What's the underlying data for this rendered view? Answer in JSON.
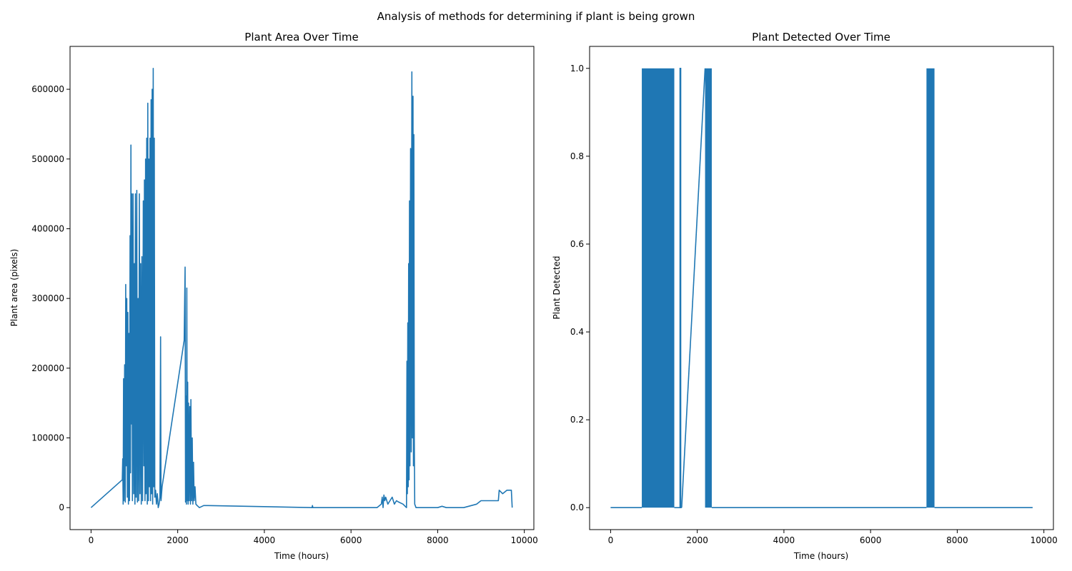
{
  "figure": {
    "suptitle": "Analysis of methods for determining if plant is being grown"
  },
  "colors": {
    "series": "#1f77b4",
    "axes": "#000000",
    "background": "#ffffff"
  },
  "chart_data": [
    {
      "id": "area",
      "type": "line",
      "title": "Plant Area Over Time",
      "xlabel": "Time (hours)",
      "ylabel": "Plant area (pixels)",
      "xlim": [
        -485,
        10220
      ],
      "ylim": [
        -31500,
        661500
      ],
      "xticks": [
        0,
        2000,
        4000,
        6000,
        8000,
        10000
      ],
      "yticks": [
        0,
        100000,
        200000,
        300000,
        400000,
        500000,
        600000
      ],
      "grid": false,
      "series": [
        {
          "points": [
            [
              0,
              0
            ],
            [
              720,
              40000
            ],
            [
              730,
              70000
            ],
            [
              740,
              5000
            ],
            [
              750,
              185000
            ],
            [
              760,
              10000
            ],
            [
              775,
              205000
            ],
            [
              790,
              8000
            ],
            [
              800,
              320000
            ],
            [
              812,
              60000
            ],
            [
              825,
              300000
            ],
            [
              838,
              15000
            ],
            [
              850,
              280000
            ],
            [
              863,
              5000
            ],
            [
              875,
              250000
            ],
            [
              888,
              10000
            ],
            [
              900,
              390000
            ],
            [
              910,
              50000
            ],
            [
              920,
              520000
            ],
            [
              930,
              120000
            ],
            [
              940,
              450000
            ],
            [
              955,
              10000
            ],
            [
              970,
              450000
            ],
            [
              985,
              20000
            ],
            [
              1000,
              350000
            ],
            [
              1012,
              5000
            ],
            [
              1025,
              450000
            ],
            [
              1040,
              15000
            ],
            [
              1055,
              455000
            ],
            [
              1070,
              8000
            ],
            [
              1085,
              300000
            ],
            [
              1100,
              10000
            ],
            [
              1115,
              450000
            ],
            [
              1130,
              20000
            ],
            [
              1145,
              350000
            ],
            [
              1160,
              5000
            ],
            [
              1175,
              360000
            ],
            [
              1190,
              10000
            ],
            [
              1205,
              440000
            ],
            [
              1220,
              60000
            ],
            [
              1232,
              470000
            ],
            [
              1245,
              10000
            ],
            [
              1258,
              500000
            ],
            [
              1270,
              20000
            ],
            [
              1285,
              530000
            ],
            [
              1298,
              5000
            ],
            [
              1310,
              580000
            ],
            [
              1322,
              10000
            ],
            [
              1335,
              500000
            ],
            [
              1348,
              30000
            ],
            [
              1360,
              530000
            ],
            [
              1372,
              10000
            ],
            [
              1385,
              585000
            ],
            [
              1397,
              20000
            ],
            [
              1410,
              600000
            ],
            [
              1422,
              5000
            ],
            [
              1435,
              630000
            ],
            [
              1447,
              30000
            ],
            [
              1460,
              530000
            ],
            [
              1472,
              15000
            ],
            [
              1490,
              25000
            ],
            [
              1510,
              5000
            ],
            [
              1530,
              20000
            ],
            [
              1550,
              0
            ],
            [
              1570,
              5000
            ],
            [
              1590,
              15000
            ],
            [
              1605,
              245000
            ],
            [
              1615,
              10000
            ],
            [
              1640,
              30000
            ],
            [
              2150,
              240000
            ],
            [
              2170,
              345000
            ],
            [
              2180,
              8000
            ],
            [
              2190,
              160000
            ],
            [
              2200,
              5000
            ],
            [
              2210,
              315000
            ],
            [
              2220,
              10000
            ],
            [
              2230,
              180000
            ],
            [
              2240,
              5000
            ],
            [
              2250,
              150000
            ],
            [
              2265,
              10000
            ],
            [
              2280,
              145000
            ],
            [
              2295,
              5000
            ],
            [
              2305,
              155000
            ],
            [
              2320,
              10000
            ],
            [
              2335,
              100000
            ],
            [
              2350,
              5000
            ],
            [
              2365,
              65000
            ],
            [
              2380,
              10000
            ],
            [
              2400,
              30000
            ],
            [
              2420,
              5000
            ],
            [
              2450,
              3000
            ],
            [
              2500,
              0
            ],
            [
              2600,
              3000
            ],
            [
              2700,
              3000
            ],
            [
              5100,
              0
            ],
            [
              5110,
              3000
            ],
            [
              5120,
              0
            ],
            [
              6600,
              0
            ],
            [
              6700,
              5000
            ],
            [
              6720,
              15000
            ],
            [
              6740,
              0
            ],
            [
              6760,
              18000
            ],
            [
              6780,
              10000
            ],
            [
              6800,
              15000
            ],
            [
              6850,
              5000
            ],
            [
              6900,
              10000
            ],
            [
              6950,
              15000
            ],
            [
              7000,
              5000
            ],
            [
              7050,
              10000
            ],
            [
              7100,
              8000
            ],
            [
              7200,
              5000
            ],
            [
              7280,
              0
            ],
            [
              7290,
              210000
            ],
            [
              7300,
              20000
            ],
            [
              7310,
              265000
            ],
            [
              7320,
              30000
            ],
            [
              7330,
              350000
            ],
            [
              7340,
              40000
            ],
            [
              7350,
              440000
            ],
            [
              7360,
              60000
            ],
            [
              7375,
              515000
            ],
            [
              7390,
              80000
            ],
            [
              7405,
              625000
            ],
            [
              7418,
              100000
            ],
            [
              7430,
              590000
            ],
            [
              7440,
              60000
            ],
            [
              7450,
              535000
            ],
            [
              7460,
              100000
            ],
            [
              7470,
              5000
            ],
            [
              7500,
              0
            ],
            [
              8000,
              0
            ],
            [
              8100,
              2000
            ],
            [
              8200,
              0
            ],
            [
              8600,
              0
            ],
            [
              8900,
              5000
            ],
            [
              9000,
              10000
            ],
            [
              9100,
              10000
            ],
            [
              9300,
              10000
            ],
            [
              9400,
              10000
            ],
            [
              9420,
              25000
            ],
            [
              9500,
              20000
            ],
            [
              9600,
              25000
            ],
            [
              9700,
              25000
            ],
            [
              9720,
              0
            ]
          ]
        }
      ]
    },
    {
      "id": "detected",
      "type": "line",
      "title": "Plant Detected Over Time",
      "xlabel": "Time (hours)",
      "ylabel": "Plant Detected",
      "xlim": [
        -485,
        10220
      ],
      "ylim": [
        -0.05,
        1.05
      ],
      "xticks": [
        0,
        2000,
        4000,
        6000,
        8000,
        10000
      ],
      "yticks": [
        0.0,
        0.2,
        0.4,
        0.6,
        0.8,
        1.0
      ],
      "grid": false,
      "series": [
        {
          "points": [
            [
              0,
              0
            ],
            [
              720,
              0
            ]
          ],
          "bands": [
            [
              720,
              1470
            ],
            [
              2180,
              2335
            ],
            [
              7290,
              7475
            ]
          ],
          "spikes": [
            1610
          ],
          "ramp": [
            [
              1640,
              0
            ],
            [
              2180,
              1
            ]
          ],
          "tail": [
            [
              7475,
              0
            ],
            [
              9740,
              0
            ]
          ]
        }
      ]
    }
  ]
}
